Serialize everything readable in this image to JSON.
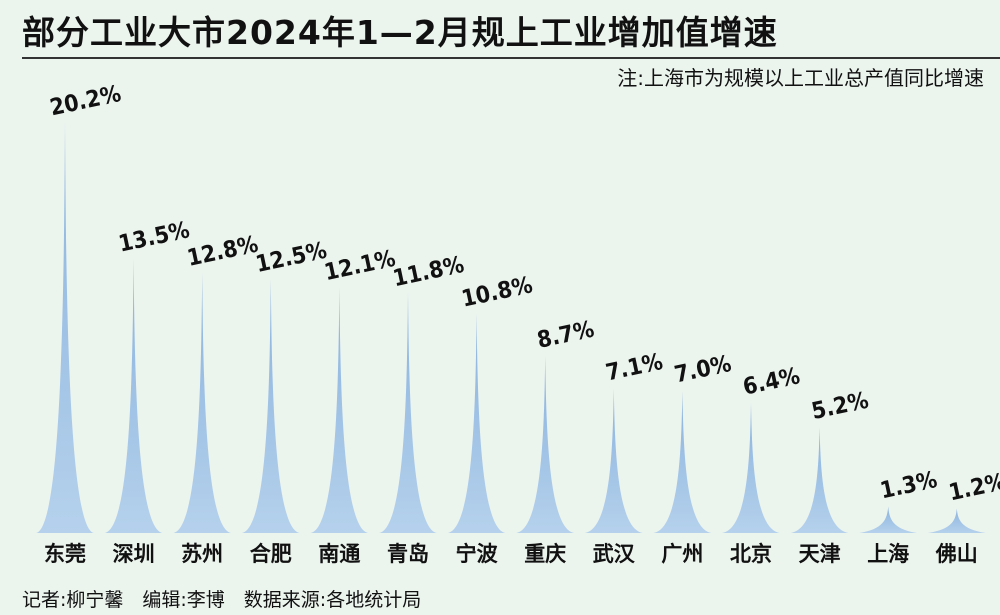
{
  "title": "部分工业大市2024年1—2月规上工业增加值增速",
  "note": "注:上海市为规模以上工业总产值同比增速",
  "credit": "记者:柳宁馨　编辑:李博　数据来源:各地统计局",
  "colors": {
    "background": "#ecf4ee",
    "peak_top": "#8ab3de",
    "peak_bottom": "#b5d1ec",
    "rule": "#333333"
  },
  "chart_data": {
    "type": "area",
    "categories": [
      "东莞",
      "深圳",
      "苏州",
      "合肥",
      "南通",
      "青岛",
      "宁波",
      "重庆",
      "武汉",
      "广州",
      "北京",
      "天津",
      "上海",
      "佛山"
    ],
    "values": [
      20.2,
      13.5,
      12.8,
      12.5,
      12.1,
      11.8,
      10.8,
      8.7,
      7.1,
      7.0,
      6.4,
      5.2,
      1.3,
      1.2
    ],
    "labels": [
      "20.2%",
      "13.5%",
      "12.8%",
      "12.5%",
      "12.1%",
      "11.8%",
      "10.8%",
      "8.7%",
      "7.1%",
      "7.0%",
      "6.4%",
      "5.2%",
      "1.3%",
      "1.2%"
    ],
    "unit": "%",
    "ylim": [
      0,
      20.2
    ],
    "grid": false,
    "legend": "none"
  }
}
